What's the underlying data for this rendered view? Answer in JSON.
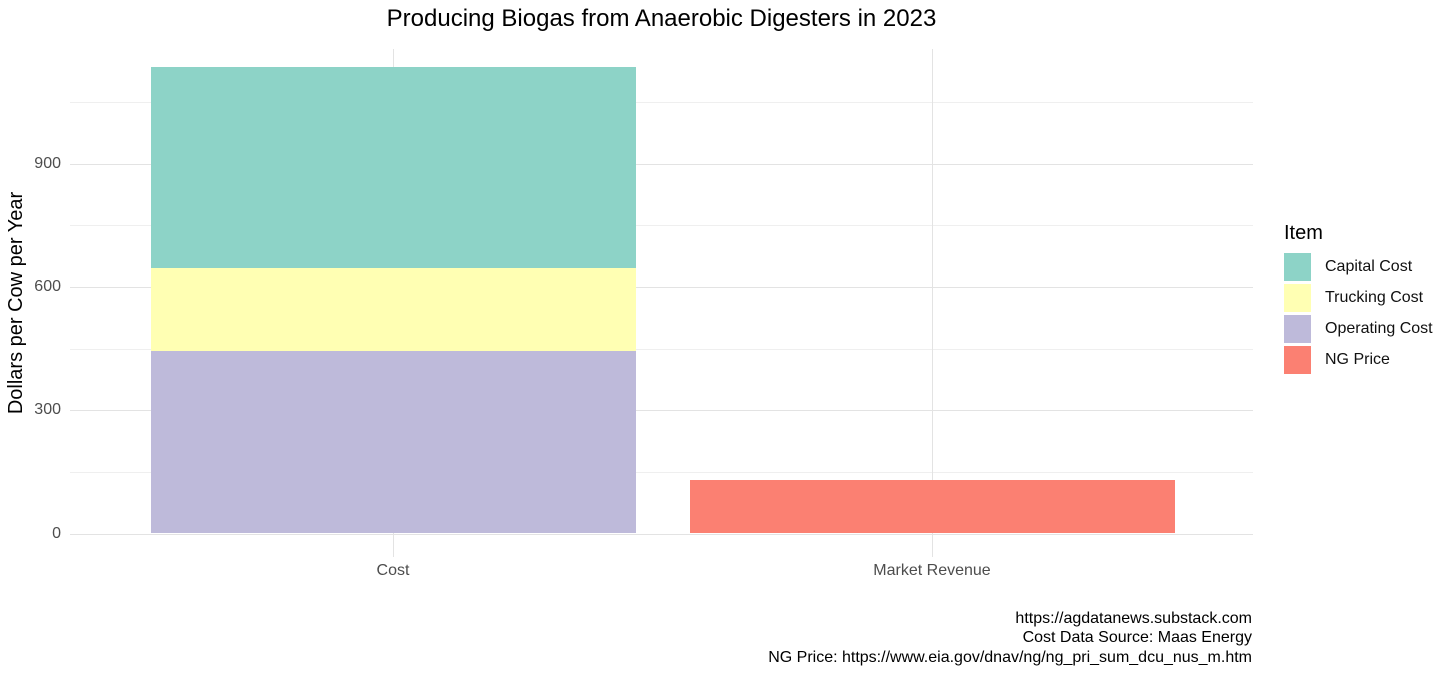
{
  "chart_data": {
    "type": "bar",
    "stacked": true,
    "title": "Producing Biogas from Anaerobic Digesters in 2023",
    "ylabel": "Dollars per Cow per Year",
    "xlabel": "",
    "categories": [
      "Cost",
      "Market Revenue"
    ],
    "series": [
      {
        "name": "Capital Cost",
        "color": "#8DD3C7",
        "values": [
          490,
          0
        ]
      },
      {
        "name": "Trucking Cost",
        "color": "#FFFFB3",
        "values": [
          200,
          0
        ]
      },
      {
        "name": "Operating Cost",
        "color": "#BEBADA",
        "values": [
          445,
          0
        ]
      },
      {
        "name": "NG Price",
        "color": "#FB8072",
        "values": [
          0,
          130
        ]
      }
    ],
    "stack_totals": [
      1135,
      130
    ],
    "ylim": [
      0,
      1135
    ],
    "yticks": [
      0,
      300,
      600,
      900
    ],
    "minor_yticks": [
      150,
      450,
      750,
      1050
    ],
    "grid": true,
    "legend_title": "Item",
    "legend_position": "right",
    "axis_text_color": "#4d4d4d",
    "grid_major_color": "#e3e3e3",
    "grid_minor_color": "#efefef"
  },
  "caption": {
    "lines": [
      "https://agdatanews.substack.com",
      "Cost Data Source: Maas Energy",
      "NG Price: https://www.eia.gov/dnav/ng/ng_pri_sum_dcu_nus_m.htm"
    ]
  }
}
